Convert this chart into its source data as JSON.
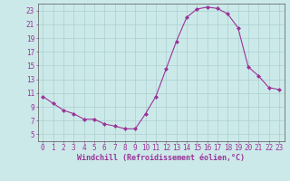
{
  "x": [
    0,
    1,
    2,
    3,
    4,
    5,
    6,
    7,
    8,
    9,
    10,
    11,
    12,
    13,
    14,
    15,
    16,
    17,
    18,
    19,
    20,
    21,
    22,
    23
  ],
  "y": [
    10.5,
    9.5,
    8.5,
    8.0,
    7.2,
    7.2,
    6.5,
    6.2,
    5.8,
    5.8,
    8.0,
    10.5,
    14.5,
    18.5,
    22.0,
    23.2,
    23.5,
    23.3,
    22.5,
    20.5,
    14.8,
    13.5,
    11.8,
    11.5
  ],
  "line_color": "#993399",
  "marker": "D",
  "markersize": 2.0,
  "markeredgewidth": 0.5,
  "linewidth": 0.8,
  "bg_color": "#cce9e9",
  "grid_color": "#aacfcf",
  "axis_color": "#555555",
  "tick_label_color": "#993399",
  "xlabel": "Windchill (Refroidissement éolien,°C)",
  "ylim": [
    4,
    24
  ],
  "xlim": [
    -0.5,
    23.5
  ],
  "yticks": [
    5,
    7,
    9,
    11,
    13,
    15,
    17,
    19,
    21,
    23
  ],
  "xticks": [
    0,
    1,
    2,
    3,
    4,
    5,
    6,
    7,
    8,
    9,
    10,
    11,
    12,
    13,
    14,
    15,
    16,
    17,
    18,
    19,
    20,
    21,
    22,
    23
  ],
  "label_fontsize": 6.0,
  "tick_fontsize": 5.5
}
